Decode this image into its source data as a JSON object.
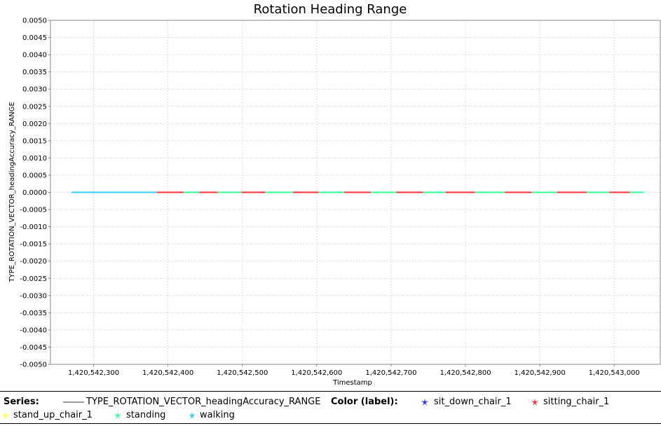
{
  "chart_data": {
    "type": "line",
    "title": "Rotation Heading Range",
    "xlabel": "Timestamp",
    "ylabel": "TYPE_ROTATION_VECTOR_headingAccuracy_RANGE",
    "xlim": [
      1420542242,
      1420543062
    ],
    "ylim": [
      -0.005,
      0.005
    ],
    "x_ticks": [
      1420542300,
      1420542400,
      1420542500,
      1420542600,
      1420542700,
      1420542800,
      1420542900,
      1420543000
    ],
    "x_tick_labels": [
      "1,420,542,300",
      "1,420,542,400",
      "1,420,542,500",
      "1,420,542,600",
      "1,420,542,700",
      "1,420,542,800",
      "1,420,542,900",
      "1,420,543,000"
    ],
    "y_ticks": [
      0.005,
      0.0045,
      0.004,
      0.0035,
      0.003,
      0.0025,
      0.002,
      0.0015,
      0.001,
      0.0005,
      0.0,
      -0.0005,
      -0.001,
      -0.0015,
      -0.002,
      -0.0025,
      -0.003,
      -0.0035,
      -0.004,
      -0.0045,
      -0.005
    ],
    "y_tick_labels": [
      "0.0050",
      "0.0045",
      "0.0040",
      "0.0035",
      "0.0030",
      "0.0025",
      "0.0020",
      "0.0015",
      "0.0010",
      "0.0005",
      "0.0000",
      "-0.0005",
      "-0.0010",
      "-0.0015",
      "-0.0020",
      "-0.0025",
      "-0.0030",
      "-0.0035",
      "-0.0040",
      "-0.0045",
      "-0.0050"
    ],
    "grid": true,
    "series": [
      {
        "name": "TYPE_ROTATION_VECTOR_headingAccuracy_RANGE",
        "y_constant": 0.0
      }
    ],
    "segments": [
      {
        "x0": 1420542270,
        "x1": 1420542385,
        "label": "walking"
      },
      {
        "x0": 1420542385,
        "x1": 1420542421,
        "label": "sitting_chair_1"
      },
      {
        "x0": 1420542421,
        "x1": 1420542442,
        "label": "standing"
      },
      {
        "x0": 1420542442,
        "x1": 1420542467,
        "label": "sitting_chair_1"
      },
      {
        "x0": 1420542467,
        "x1": 1420542499,
        "label": "standing"
      },
      {
        "x0": 1420542499,
        "x1": 1420542531,
        "label": "sitting_chair_1"
      },
      {
        "x0": 1420542531,
        "x1": 1420542568,
        "label": "standing"
      },
      {
        "x0": 1420542568,
        "x1": 1420542603,
        "label": "sitting_chair_1"
      },
      {
        "x0": 1420542603,
        "x1": 1420542637,
        "label": "standing"
      },
      {
        "x0": 1420542637,
        "x1": 1420542673,
        "label": "sitting_chair_1"
      },
      {
        "x0": 1420542673,
        "x1": 1420542707,
        "label": "standing"
      },
      {
        "x0": 1420542707,
        "x1": 1420542743,
        "label": "sitting_chair_1"
      },
      {
        "x0": 1420542743,
        "x1": 1420542773,
        "label": "standing"
      },
      {
        "x0": 1420542773,
        "x1": 1420542813,
        "label": "sitting_chair_1"
      },
      {
        "x0": 1420542813,
        "x1": 1420542853,
        "label": "standing"
      },
      {
        "x0": 1420542853,
        "x1": 1420542889,
        "label": "sitting_chair_1"
      },
      {
        "x0": 1420542889,
        "x1": 1420542923,
        "label": "standing"
      },
      {
        "x0": 1420542923,
        "x1": 1420542963,
        "label": "sitting_chair_1"
      },
      {
        "x0": 1420542963,
        "x1": 1420542993,
        "label": "standing"
      },
      {
        "x0": 1420542993,
        "x1": 1420543021,
        "label": "sitting_chair_1"
      },
      {
        "x0": 1420543021,
        "x1": 1420543040,
        "label": "standing"
      }
    ],
    "colors": {
      "sit_down_chair_1": "#3333ff",
      "sitting_chair_1": "#ff3333",
      "stand_up_chair_1": "#ffff33",
      "standing": "#33ff99",
      "walking": "#33ccff",
      "series_line": "#999999",
      "grid": "#d9d9d9"
    },
    "legend_placement": "bottom"
  },
  "legend": {
    "series_heading": "Series:",
    "series_name": "TYPE_ROTATION_VECTOR_headingAccuracy_RANGE",
    "color_heading": "Color (label):",
    "labels": [
      "sit_down_chair_1",
      "sitting_chair_1",
      "stand_up_chair_1",
      "standing",
      "walking"
    ]
  }
}
